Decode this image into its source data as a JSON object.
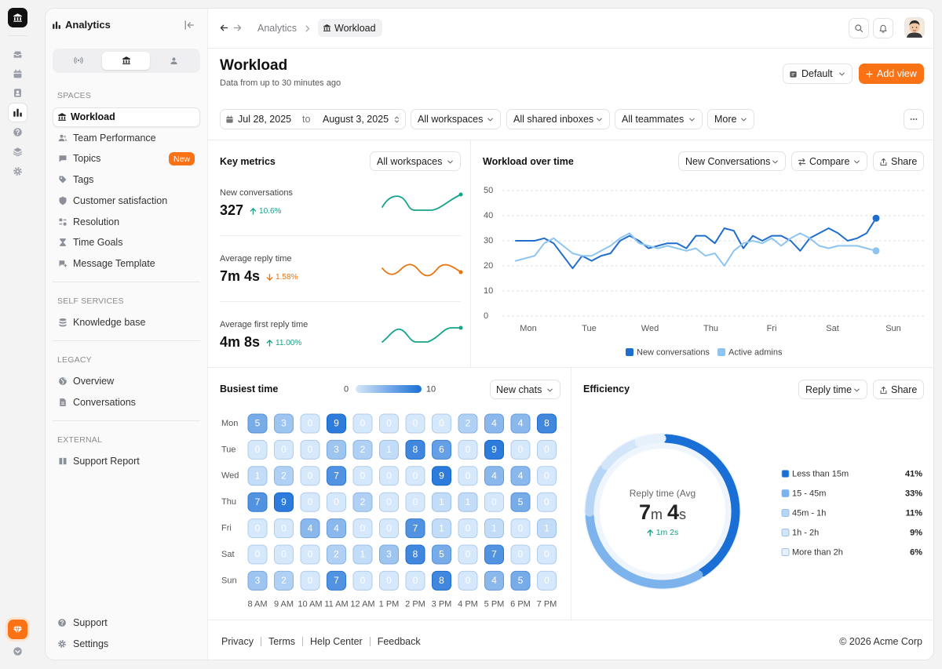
{
  "app": {
    "title": "Analytics"
  },
  "sidebar": {
    "sections": [
      {
        "title": "SPACES",
        "items": [
          {
            "label": "Workload",
            "active": true
          },
          {
            "label": "Team Performance"
          },
          {
            "label": "Topics",
            "badge": "New"
          },
          {
            "label": "Tags"
          },
          {
            "label": "Customer satisfaction"
          },
          {
            "label": "Resolution"
          },
          {
            "label": "Time Goals"
          },
          {
            "label": "Message Template"
          }
        ]
      },
      {
        "title": "SELF SERVICES",
        "items": [
          {
            "label": "Knowledge base"
          }
        ]
      },
      {
        "title": "LEGACY",
        "items": [
          {
            "label": "Overview"
          },
          {
            "label": "Conversations"
          }
        ]
      },
      {
        "title": "EXTERNAL",
        "items": [
          {
            "label": "Support Report"
          }
        ]
      }
    ],
    "bottom_items": [
      "Support",
      "Settings"
    ]
  },
  "topbar": {
    "breadcrumb": [
      "Analytics",
      "Workload"
    ]
  },
  "header": {
    "title": "Workload",
    "subtitle": "Data from up to 30 minutes ago",
    "view": "Default",
    "add_button": "Add view"
  },
  "filters": {
    "date_from": "Jul 28, 2025",
    "date_separator": "to",
    "date_to": "August 3, 2025",
    "dropdowns": [
      "All workspaces",
      "All shared inboxes",
      "All teammates",
      "More"
    ]
  },
  "key_metrics": {
    "title": "Key metrics",
    "dropdown": "All workspaces",
    "metrics": [
      {
        "label": "New conversations",
        "value": "327",
        "change": "10.6%",
        "trend": "up"
      },
      {
        "label": "Average reply time",
        "value": "7m 4s",
        "change": "1.58%",
        "trend": "down"
      },
      {
        "label": "Average first reply time",
        "value": "4m 8s",
        "change": "11.00%",
        "trend": "up"
      }
    ]
  },
  "workload_over_time": {
    "type": "line",
    "title": "Workload over time",
    "buttons": [
      "New Conversations",
      "Compare",
      "Share"
    ],
    "categories": [
      "Mon",
      "Tue",
      "Wed",
      "Thu",
      "Fri",
      "Sat",
      "Sun"
    ],
    "ylim": [
      0,
      50
    ],
    "yticks": [
      0,
      10,
      20,
      30,
      40,
      50
    ],
    "grid": true,
    "series": [
      {
        "name": "New conversations",
        "color": "#1f6dcc",
        "values": [
          30,
          30,
          30,
          31,
          29,
          24,
          19,
          24,
          22,
          24,
          25,
          30,
          32,
          30,
          27,
          28,
          29,
          29,
          27,
          32,
          32,
          29,
          35,
          34,
          27,
          32,
          30,
          32,
          32,
          30,
          26,
          31,
          33,
          35,
          33,
          30,
          31,
          33,
          39
        ]
      },
      {
        "name": "Active admins",
        "color": "#8ec5f0",
        "values": [
          22,
          23,
          24,
          29,
          31,
          28,
          25,
          24,
          24,
          26,
          28,
          31,
          33,
          29,
          28,
          27,
          28,
          27,
          26,
          27,
          24,
          25,
          20,
          26,
          29,
          30,
          29,
          31,
          28,
          31,
          33,
          31,
          28,
          27,
          28,
          28,
          28,
          27,
          26
        ]
      }
    ]
  },
  "busiest_time": {
    "title": "Busiest time",
    "scale": [
      0,
      10
    ],
    "dropdown": "New chats",
    "rows": [
      "Mon",
      "Tue",
      "Wed",
      "Thu",
      "Fri",
      "Sat",
      "Sun"
    ],
    "columns": [
      "8 AM",
      "9 AM",
      "10 AM",
      "11 AM",
      "12 AM",
      "1 PM",
      "2 PM",
      "3 PM",
      "4 PM",
      "5 PM",
      "6 PM",
      "7 PM"
    ],
    "values": [
      [
        5,
        3,
        0,
        9,
        0,
        0,
        0,
        0,
        2,
        4,
        4,
        8
      ],
      [
        0,
        0,
        0,
        3,
        2,
        1,
        8,
        6,
        0,
        9,
        0,
        0
      ],
      [
        1,
        2,
        0,
        7,
        0,
        0,
        0,
        9,
        0,
        4,
        4,
        0
      ],
      [
        7,
        9,
        0,
        0,
        2,
        0,
        0,
        1,
        1,
        0,
        5,
        0
      ],
      [
        0,
        0,
        4,
        4,
        0,
        0,
        7,
        1,
        0,
        1,
        0,
        1
      ],
      [
        0,
        0,
        0,
        2,
        1,
        3,
        8,
        5,
        0,
        7,
        0,
        0
      ],
      [
        3,
        2,
        0,
        7,
        0,
        0,
        0,
        8,
        0,
        4,
        5,
        0
      ]
    ]
  },
  "efficiency": {
    "type": "donut",
    "title": "Efficiency",
    "dropdown": "Reply time",
    "share": "Share",
    "center_title": "Reply time (Avg",
    "center_value": [
      "7",
      "m",
      "4",
      "s"
    ],
    "center_change": "1m 2s",
    "center_trend": "up",
    "categories": [
      "Less than 15m",
      "15 - 45m",
      "45m - 1h",
      "1h - 2h",
      "More than 2h"
    ],
    "values": [
      41,
      33,
      11,
      9,
      6
    ],
    "value_labels": [
      "41%",
      "33%",
      "11%",
      "9%",
      "6%"
    ],
    "colors": [
      "#1a6fd6",
      "#7db3ec",
      "#b7d5f5",
      "#d3e5f9",
      "#e7f1fc"
    ]
  },
  "footer": {
    "links": [
      "Privacy",
      "Terms",
      "Help Center",
      "Feedback"
    ],
    "copyright": "© 2026 Acme Corp"
  }
}
